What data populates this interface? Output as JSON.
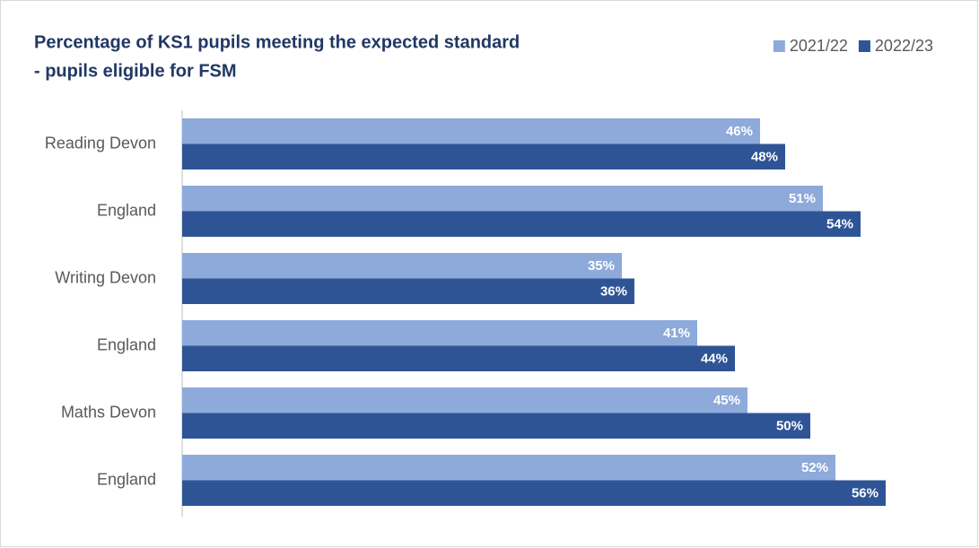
{
  "chart_data": {
    "type": "bar",
    "orientation": "horizontal",
    "title": [
      "Percentage of KS1 pupils meeting the expected standard",
      " - pupils eligible for FSM"
    ],
    "categories": [
      "Reading Devon",
      "England",
      "Writing Devon",
      "England",
      "Maths Devon",
      "England"
    ],
    "series": [
      {
        "name": "2021/22",
        "color": "#8eaadb",
        "values": [
          46,
          51,
          35,
          41,
          45,
          52
        ],
        "value_labels": [
          "46%",
          "51%",
          "35%",
          "41%",
          "45%",
          "52%"
        ]
      },
      {
        "name": "2022/23",
        "color": "#2f5496",
        "values": [
          48,
          54,
          36,
          44,
          50,
          56
        ],
        "value_labels": [
          "48%",
          "54%",
          "36%",
          "44%",
          "50%",
          "56%"
        ]
      }
    ],
    "legend": "top-right"
  }
}
